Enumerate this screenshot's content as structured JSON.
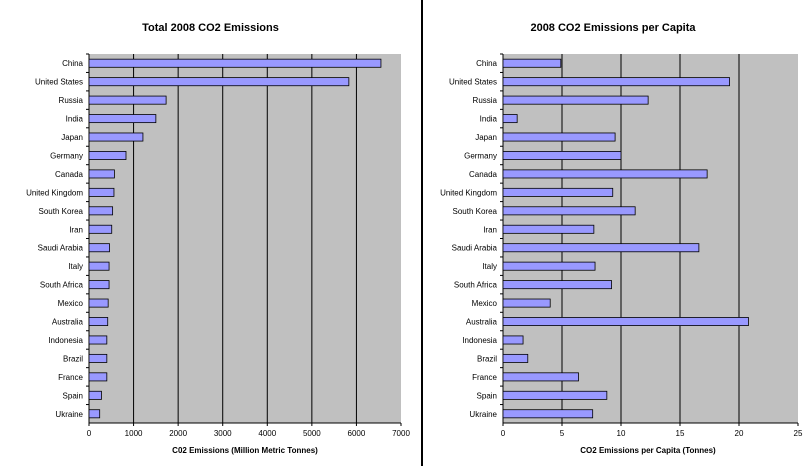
{
  "chart_data": [
    {
      "type": "bar",
      "orientation": "horizontal",
      "title": "Total 2008 CO2 Emissions",
      "xlabel": "C02 Emissions (Million Metric Tonnes)",
      "ylabel": "",
      "xlim": [
        0,
        7000
      ],
      "ticks": [
        "0",
        "1000",
        "2000",
        "3000",
        "4000",
        "5000",
        "6000",
        "7000"
      ],
      "grid": true,
      "categories": [
        "China",
        "United States",
        "Russia",
        "India",
        "Japan",
        "Germany",
        "Canada",
        "United Kingdom",
        "South Korea",
        "Iran",
        "Saudi Arabia",
        "Italy",
        "South Africa",
        "Mexico",
        "Australia",
        "Indonesia",
        "Brazil",
        "France",
        "Spain",
        "Ukraine"
      ],
      "values": [
        6550,
        5830,
        1730,
        1500,
        1210,
        830,
        570,
        560,
        530,
        510,
        460,
        450,
        450,
        430,
        420,
        400,
        400,
        400,
        280,
        240
      ]
    },
    {
      "type": "bar",
      "orientation": "horizontal",
      "title": "2008 CO2 Emissions per Capita",
      "xlabel": "CO2 Emissions per Capita (Tonnes)",
      "ylabel": "",
      "xlim": [
        0,
        25
      ],
      "ticks": [
        "0",
        "5",
        "10",
        "15",
        "20",
        "25"
      ],
      "grid": true,
      "categories": [
        "China",
        "United States",
        "Russia",
        "India",
        "Japan",
        "Germany",
        "Canada",
        "United Kingdom",
        "South Korea",
        "Iran",
        "Saudi Arabia",
        "Italy",
        "South Africa",
        "Mexico",
        "Australia",
        "Indonesia",
        "Brazil",
        "France",
        "Spain",
        "Ukraine"
      ],
      "values": [
        4.9,
        19.2,
        12.3,
        1.2,
        9.5,
        10.0,
        17.3,
        9.3,
        11.2,
        7.7,
        16.6,
        7.8,
        9.2,
        4.0,
        20.8,
        1.7,
        2.1,
        6.4,
        8.8,
        7.6
      ]
    }
  ],
  "colors": {
    "plot_bg": "#c0c0c0",
    "bar_fill": "#9999ff",
    "bar_stroke": "#000000",
    "grid": "#000000"
  }
}
